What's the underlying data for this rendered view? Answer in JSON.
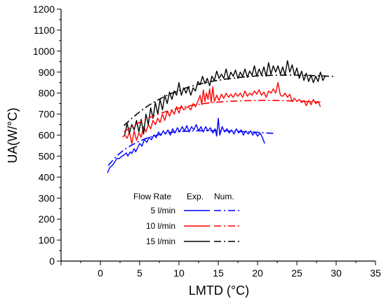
{
  "chart_data": {
    "type": "line",
    "xlabel": "LMTD (°C)",
    "ylabel": "UA(W/°C)",
    "xlim": [
      -5,
      35
    ],
    "ylim": [
      0,
      1200
    ],
    "xticks": [
      0,
      5,
      10,
      15,
      20,
      25,
      30,
      35
    ],
    "yticks": [
      0,
      100,
      200,
      300,
      400,
      500,
      600,
      700,
      800,
      900,
      1000,
      1100,
      1200
    ],
    "xtick_labels": [
      "0",
      "5",
      "10",
      "15",
      "20",
      "25",
      "30",
      "35"
    ],
    "ytick_labels": [
      "0",
      "100",
      "200",
      "300",
      "400",
      "500",
      "600",
      "700",
      "800",
      "900",
      "1000",
      "1100",
      "1200"
    ],
    "grid": false,
    "legend": {
      "placement": "bottom-center",
      "header_label": "Flow Rate",
      "exp_label": "Exp.",
      "num_label": "Num.",
      "rows": [
        {
          "label": "5 l/min",
          "color": "#0000ff"
        },
        {
          "label": "10 l/min",
          "color": "#ff0000"
        },
        {
          "label": "15 l/min",
          "color": "#000000"
        }
      ]
    },
    "series": [
      {
        "name": "5 l/min Exp.",
        "kind": "exp",
        "color": "#0000ff",
        "points": [
          [
            0.9,
            420
          ],
          [
            1.2,
            445
          ],
          [
            1.5,
            455
          ],
          [
            1.8,
            470
          ],
          [
            2.1,
            490
          ],
          [
            2.4,
            488
          ],
          [
            2.7,
            498
          ],
          [
            3.0,
            505
          ],
          [
            3.3,
            515
          ],
          [
            3.5,
            500
          ],
          [
            3.8,
            520
          ],
          [
            4.0,
            512
          ],
          [
            4.3,
            535
          ],
          [
            4.5,
            520
          ],
          [
            4.8,
            545
          ],
          [
            5.0,
            560
          ],
          [
            5.3,
            548
          ],
          [
            5.6,
            580
          ],
          [
            5.9,
            565
          ],
          [
            6.2,
            590
          ],
          [
            6.5,
            578
          ],
          [
            6.8,
            600
          ],
          [
            7.1,
            588
          ],
          [
            7.4,
            615
          ],
          [
            7.7,
            598
          ],
          [
            8.0,
            620
          ],
          [
            8.3,
            605
          ],
          [
            8.6,
            625
          ],
          [
            8.9,
            600
          ],
          [
            9.2,
            630
          ],
          [
            9.5,
            610
          ],
          [
            9.8,
            635
          ],
          [
            10.1,
            615
          ],
          [
            10.4,
            640
          ],
          [
            10.7,
            620
          ],
          [
            11.0,
            645
          ],
          [
            11.3,
            615
          ],
          [
            11.6,
            640
          ],
          [
            11.9,
            625
          ],
          [
            12.2,
            650
          ],
          [
            12.5,
            620
          ],
          [
            12.8,
            640
          ],
          [
            13.1,
            615
          ],
          [
            13.4,
            640
          ],
          [
            13.7,
            620
          ],
          [
            14.0,
            635
          ],
          [
            14.3,
            610
          ],
          [
            14.6,
            630
          ],
          [
            14.8,
            595
          ],
          [
            15.0,
            680
          ],
          [
            15.2,
            600
          ],
          [
            15.5,
            640
          ],
          [
            15.8,
            615
          ],
          [
            16.1,
            630
          ],
          [
            16.4,
            610
          ],
          [
            16.7,
            625
          ],
          [
            17.0,
            605
          ],
          [
            17.3,
            630
          ],
          [
            17.6,
            610
          ],
          [
            17.9,
            625
          ],
          [
            18.2,
            600
          ],
          [
            18.5,
            620
          ],
          [
            18.8,
            605
          ],
          [
            19.1,
            620
          ],
          [
            19.4,
            600
          ],
          [
            19.7,
            615
          ],
          [
            20.0,
            595
          ],
          [
            20.3,
            610
          ],
          [
            20.6,
            590
          ],
          [
            20.9,
            560
          ]
        ]
      },
      {
        "name": "10 l/min Exp.",
        "kind": "exp",
        "color": "#ff0000",
        "points": [
          [
            2.8,
            590
          ],
          [
            3.1,
            600
          ],
          [
            3.4,
            585
          ],
          [
            3.7,
            615
          ],
          [
            4.0,
            560
          ],
          [
            4.3,
            620
          ],
          [
            4.6,
            575
          ],
          [
            4.9,
            610
          ],
          [
            5.2,
            590
          ],
          [
            5.5,
            640
          ],
          [
            5.8,
            615
          ],
          [
            6.1,
            650
          ],
          [
            6.4,
            630
          ],
          [
            6.7,
            670
          ],
          [
            7.0,
            650
          ],
          [
            7.3,
            680
          ],
          [
            7.6,
            660
          ],
          [
            7.9,
            700
          ],
          [
            8.2,
            670
          ],
          [
            8.5,
            715
          ],
          [
            8.8,
            690
          ],
          [
            9.1,
            720
          ],
          [
            9.4,
            700
          ],
          [
            9.7,
            735
          ],
          [
            10.0,
            705
          ],
          [
            10.3,
            740
          ],
          [
            10.6,
            720
          ],
          [
            10.9,
            730
          ],
          [
            11.2,
            735
          ],
          [
            11.5,
            720
          ],
          [
            11.8,
            750
          ],
          [
            12.1,
            735
          ],
          [
            12.4,
            760
          ],
          [
            12.7,
            790
          ],
          [
            12.9,
            745
          ],
          [
            13.1,
            815
          ],
          [
            13.3,
            760
          ],
          [
            13.5,
            800
          ],
          [
            13.7,
            770
          ],
          [
            13.9,
            820
          ],
          [
            14.1,
            755
          ],
          [
            14.3,
            830
          ],
          [
            14.5,
            760
          ],
          [
            14.8,
            790
          ],
          [
            15.1,
            765
          ],
          [
            15.4,
            795
          ],
          [
            15.7,
            775
          ],
          [
            16.0,
            800
          ],
          [
            16.3,
            780
          ],
          [
            16.6,
            795
          ],
          [
            16.9,
            780
          ],
          [
            17.2,
            800
          ],
          [
            17.5,
            785
          ],
          [
            17.8,
            800
          ],
          [
            18.1,
            780
          ],
          [
            18.4,
            810
          ],
          [
            18.7,
            785
          ],
          [
            19.0,
            800
          ],
          [
            19.3,
            790
          ],
          [
            19.6,
            810
          ],
          [
            19.9,
            795
          ],
          [
            20.2,
            815
          ],
          [
            20.5,
            790
          ],
          [
            20.8,
            805
          ],
          [
            21.1,
            780
          ],
          [
            21.4,
            810
          ],
          [
            21.7,
            800
          ],
          [
            22.0,
            820
          ],
          [
            22.3,
            800
          ],
          [
            22.6,
            850
          ],
          [
            22.9,
            790
          ],
          [
            23.2,
            785
          ],
          [
            23.5,
            800
          ],
          [
            23.8,
            780
          ],
          [
            24.1,
            795
          ],
          [
            24.4,
            760
          ],
          [
            24.7,
            775
          ],
          [
            25.0,
            760
          ],
          [
            25.3,
            770
          ],
          [
            25.6,
            755
          ],
          [
            25.9,
            765
          ],
          [
            26.2,
            740
          ],
          [
            26.5,
            765
          ],
          [
            26.8,
            745
          ],
          [
            27.1,
            770
          ],
          [
            27.4,
            750
          ],
          [
            27.7,
            760
          ],
          [
            28.0,
            735
          ]
        ]
      },
      {
        "name": "15 l/min Exp.",
        "kind": "exp",
        "color": "#000000",
        "points": [
          [
            3.1,
            600
          ],
          [
            3.4,
            655
          ],
          [
            3.7,
            610
          ],
          [
            4.0,
            650
          ],
          [
            4.3,
            625
          ],
          [
            4.6,
            670
          ],
          [
            4.9,
            615
          ],
          [
            5.2,
            675
          ],
          [
            5.5,
            605
          ],
          [
            5.8,
            700
          ],
          [
            6.1,
            650
          ],
          [
            6.4,
            730
          ],
          [
            6.7,
            680
          ],
          [
            7.0,
            755
          ],
          [
            7.3,
            700
          ],
          [
            7.6,
            770
          ],
          [
            7.9,
            720
          ],
          [
            8.2,
            790
          ],
          [
            8.5,
            750
          ],
          [
            8.8,
            805
          ],
          [
            9.1,
            770
          ],
          [
            9.4,
            810
          ],
          [
            9.7,
            790
          ],
          [
            10.0,
            850
          ],
          [
            10.3,
            790
          ],
          [
            10.6,
            825
          ],
          [
            10.9,
            800
          ],
          [
            11.2,
            830
          ],
          [
            11.5,
            790
          ],
          [
            11.8,
            825
          ],
          [
            12.1,
            810
          ],
          [
            12.4,
            855
          ],
          [
            12.7,
            840
          ],
          [
            13.0,
            880
          ],
          [
            13.3,
            845
          ],
          [
            13.6,
            870
          ],
          [
            13.9,
            835
          ],
          [
            14.2,
            880
          ],
          [
            14.5,
            860
          ],
          [
            14.8,
            905
          ],
          [
            15.1,
            870
          ],
          [
            15.4,
            890
          ],
          [
            15.7,
            870
          ],
          [
            16.0,
            915
          ],
          [
            16.3,
            865
          ],
          [
            16.6,
            900
          ],
          [
            16.9,
            880
          ],
          [
            17.2,
            910
          ],
          [
            17.5,
            870
          ],
          [
            17.8,
            900
          ],
          [
            18.1,
            880
          ],
          [
            18.4,
            915
          ],
          [
            18.7,
            875
          ],
          [
            19.0,
            905
          ],
          [
            19.3,
            885
          ],
          [
            19.6,
            930
          ],
          [
            19.9,
            880
          ],
          [
            20.2,
            915
          ],
          [
            20.5,
            885
          ],
          [
            20.8,
            925
          ],
          [
            21.1,
            880
          ],
          [
            21.4,
            945
          ],
          [
            21.7,
            890
          ],
          [
            22.0,
            930
          ],
          [
            22.3,
            900
          ],
          [
            22.6,
            930
          ],
          [
            22.9,
            890
          ],
          [
            23.2,
            925
          ],
          [
            23.5,
            885
          ],
          [
            23.8,
            955
          ],
          [
            24.1,
            900
          ],
          [
            24.4,
            935
          ],
          [
            24.7,
            885
          ],
          [
            25.0,
            920
          ],
          [
            25.3,
            870
          ],
          [
            25.6,
            905
          ],
          [
            25.9,
            860
          ],
          [
            26.2,
            895
          ],
          [
            26.5,
            855
          ],
          [
            26.8,
            885
          ],
          [
            27.1,
            850
          ],
          [
            27.4,
            880
          ],
          [
            27.7,
            855
          ],
          [
            28.0,
            900
          ],
          [
            28.3,
            860
          ],
          [
            28.6,
            880
          ]
        ]
      },
      {
        "name": "5 l/min Num.",
        "kind": "num",
        "color": "#0000ff",
        "points": [
          [
            1.0,
            455
          ],
          [
            2.0,
            498
          ],
          [
            3.0,
            530
          ],
          [
            4.0,
            553
          ],
          [
            5.0,
            572
          ],
          [
            6.0,
            587
          ],
          [
            7.0,
            598
          ],
          [
            8.0,
            607
          ],
          [
            9.0,
            613
          ],
          [
            10.0,
            617
          ],
          [
            12.0,
            620
          ],
          [
            14.0,
            621
          ],
          [
            16.0,
            620
          ],
          [
            18.0,
            617
          ],
          [
            20.0,
            613
          ],
          [
            22.0,
            608
          ]
        ]
      },
      {
        "name": "10 l/min Num.",
        "kind": "num",
        "color": "#ff0000",
        "points": [
          [
            3.0,
            615
          ],
          [
            4.0,
            640
          ],
          [
            5.0,
            661
          ],
          [
            6.0,
            679
          ],
          [
            7.0,
            695
          ],
          [
            8.0,
            708
          ],
          [
            9.0,
            719
          ],
          [
            10.0,
            729
          ],
          [
            11.0,
            737
          ],
          [
            12.0,
            744
          ],
          [
            14.0,
            754
          ],
          [
            16.0,
            760
          ],
          [
            18.0,
            763
          ],
          [
            20.0,
            765
          ],
          [
            22.0,
            765
          ],
          [
            24.0,
            763
          ],
          [
            26.0,
            760
          ],
          [
            28.0,
            757
          ]
        ]
      },
      {
        "name": "15 l/min Num.",
        "kind": "num",
        "color": "#000000",
        "points": [
          [
            3.0,
            645
          ],
          [
            4.0,
            680
          ],
          [
            5.0,
            711
          ],
          [
            6.0,
            738
          ],
          [
            7.0,
            761
          ],
          [
            8.0,
            781
          ],
          [
            9.0,
            798
          ],
          [
            10.0,
            813
          ],
          [
            11.0,
            826
          ],
          [
            12.0,
            837
          ],
          [
            14.0,
            855
          ],
          [
            16.0,
            867
          ],
          [
            18.0,
            876
          ],
          [
            20.0,
            882
          ],
          [
            22.0,
            885
          ],
          [
            24.0,
            886
          ],
          [
            26.0,
            885
          ],
          [
            28.0,
            882
          ],
          [
            30.0,
            879
          ]
        ]
      }
    ]
  }
}
